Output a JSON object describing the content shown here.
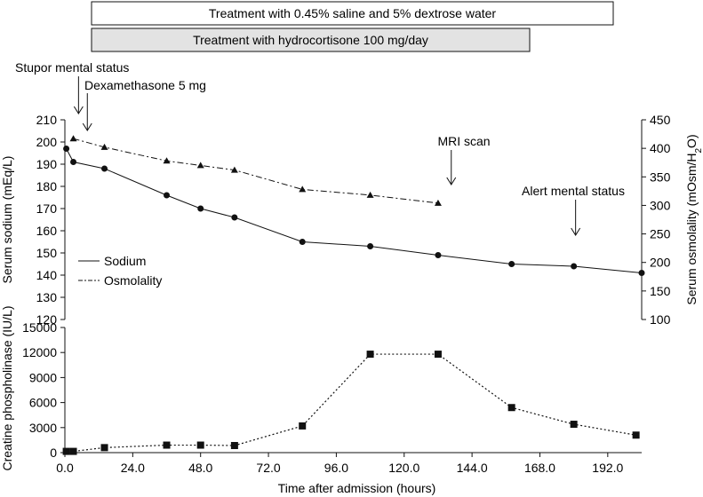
{
  "treatments": [
    {
      "label": "Treatment with 0.45% saline and 5% dextrose water",
      "start": 0,
      "end": 198,
      "fill": "#ffffff"
    },
    {
      "label": "Treatment with hydrocortisone 100 mg/day",
      "start": 0,
      "end": 160,
      "fill": "#e3e3e3"
    }
  ],
  "annotations": [
    {
      "id": "stupor",
      "text": "Stupor mental status",
      "x": 2,
      "arrow": true
    },
    {
      "id": "dexamethasone",
      "text": "Dexamethasone 5 mg",
      "x": 7,
      "arrow": true
    },
    {
      "id": "mri",
      "text": "MRI scan",
      "x": 142,
      "arrow": true
    },
    {
      "id": "alert",
      "text": "Alert mental status",
      "x": 180,
      "arrow": true
    }
  ],
  "chart_data": [
    {
      "type": "line",
      "xlabel": "",
      "ylabel": "Serum sodium (mEq/L)",
      "y2label_parts": [
        "Serum osmolality (mOsm/H",
        "2",
        "O)"
      ],
      "xlim": [
        0,
        204
      ],
      "ylim": [
        120,
        210
      ],
      "y2lim": [
        100,
        450
      ],
      "yticks": [
        120,
        130,
        140,
        150,
        160,
        170,
        180,
        190,
        200,
        210
      ],
      "y2ticks": [
        100,
        150,
        200,
        250,
        300,
        350,
        400,
        450
      ],
      "legend": {
        "position": "bottom-left",
        "entries": [
          "Sodium",
          "Osmolality"
        ]
      },
      "series": [
        {
          "name": "Sodium",
          "axis": "left",
          "marker": "circle",
          "line": "solid",
          "x": [
            0.5,
            3,
            14,
            36,
            48,
            60,
            84,
            108,
            132,
            158,
            180,
            204
          ],
          "y": [
            197,
            191,
            188,
            176,
            170,
            166,
            155,
            153,
            149,
            145,
            144,
            141
          ]
        },
        {
          "name": "Osmolality",
          "axis": "right",
          "marker": "triangle",
          "line": "dashdot",
          "x": [
            3,
            14,
            36,
            48,
            60,
            84,
            108,
            132
          ],
          "y": [
            417,
            402,
            378,
            370,
            362,
            328,
            318,
            304
          ]
        }
      ]
    },
    {
      "type": "line",
      "xlabel": "Time after admission (hours)",
      "ylabel": "Creatine phospholinase (IU/L)",
      "xlim": [
        0,
        204
      ],
      "ylim": [
        0,
        15000
      ],
      "yticks": [
        0,
        3000,
        6000,
        9000,
        12000,
        15000
      ],
      "xticks": [
        0,
        24,
        48,
        72,
        96,
        120,
        144,
        168,
        192
      ],
      "xticklabels": [
        "0.0",
        "24.0",
        "48.0",
        "72.0",
        "96.0",
        "120.0",
        "144.0",
        "168.0",
        "192.0"
      ],
      "series": [
        {
          "name": "",
          "marker": "square",
          "line": "dotted",
          "x": [
            0.5,
            3,
            14,
            36,
            48,
            60,
            84,
            108,
            132,
            158,
            180,
            202
          ],
          "y": [
            150,
            150,
            600,
            900,
            900,
            850,
            3200,
            11800,
            11800,
            5400,
            3400,
            2100
          ]
        }
      ]
    }
  ]
}
